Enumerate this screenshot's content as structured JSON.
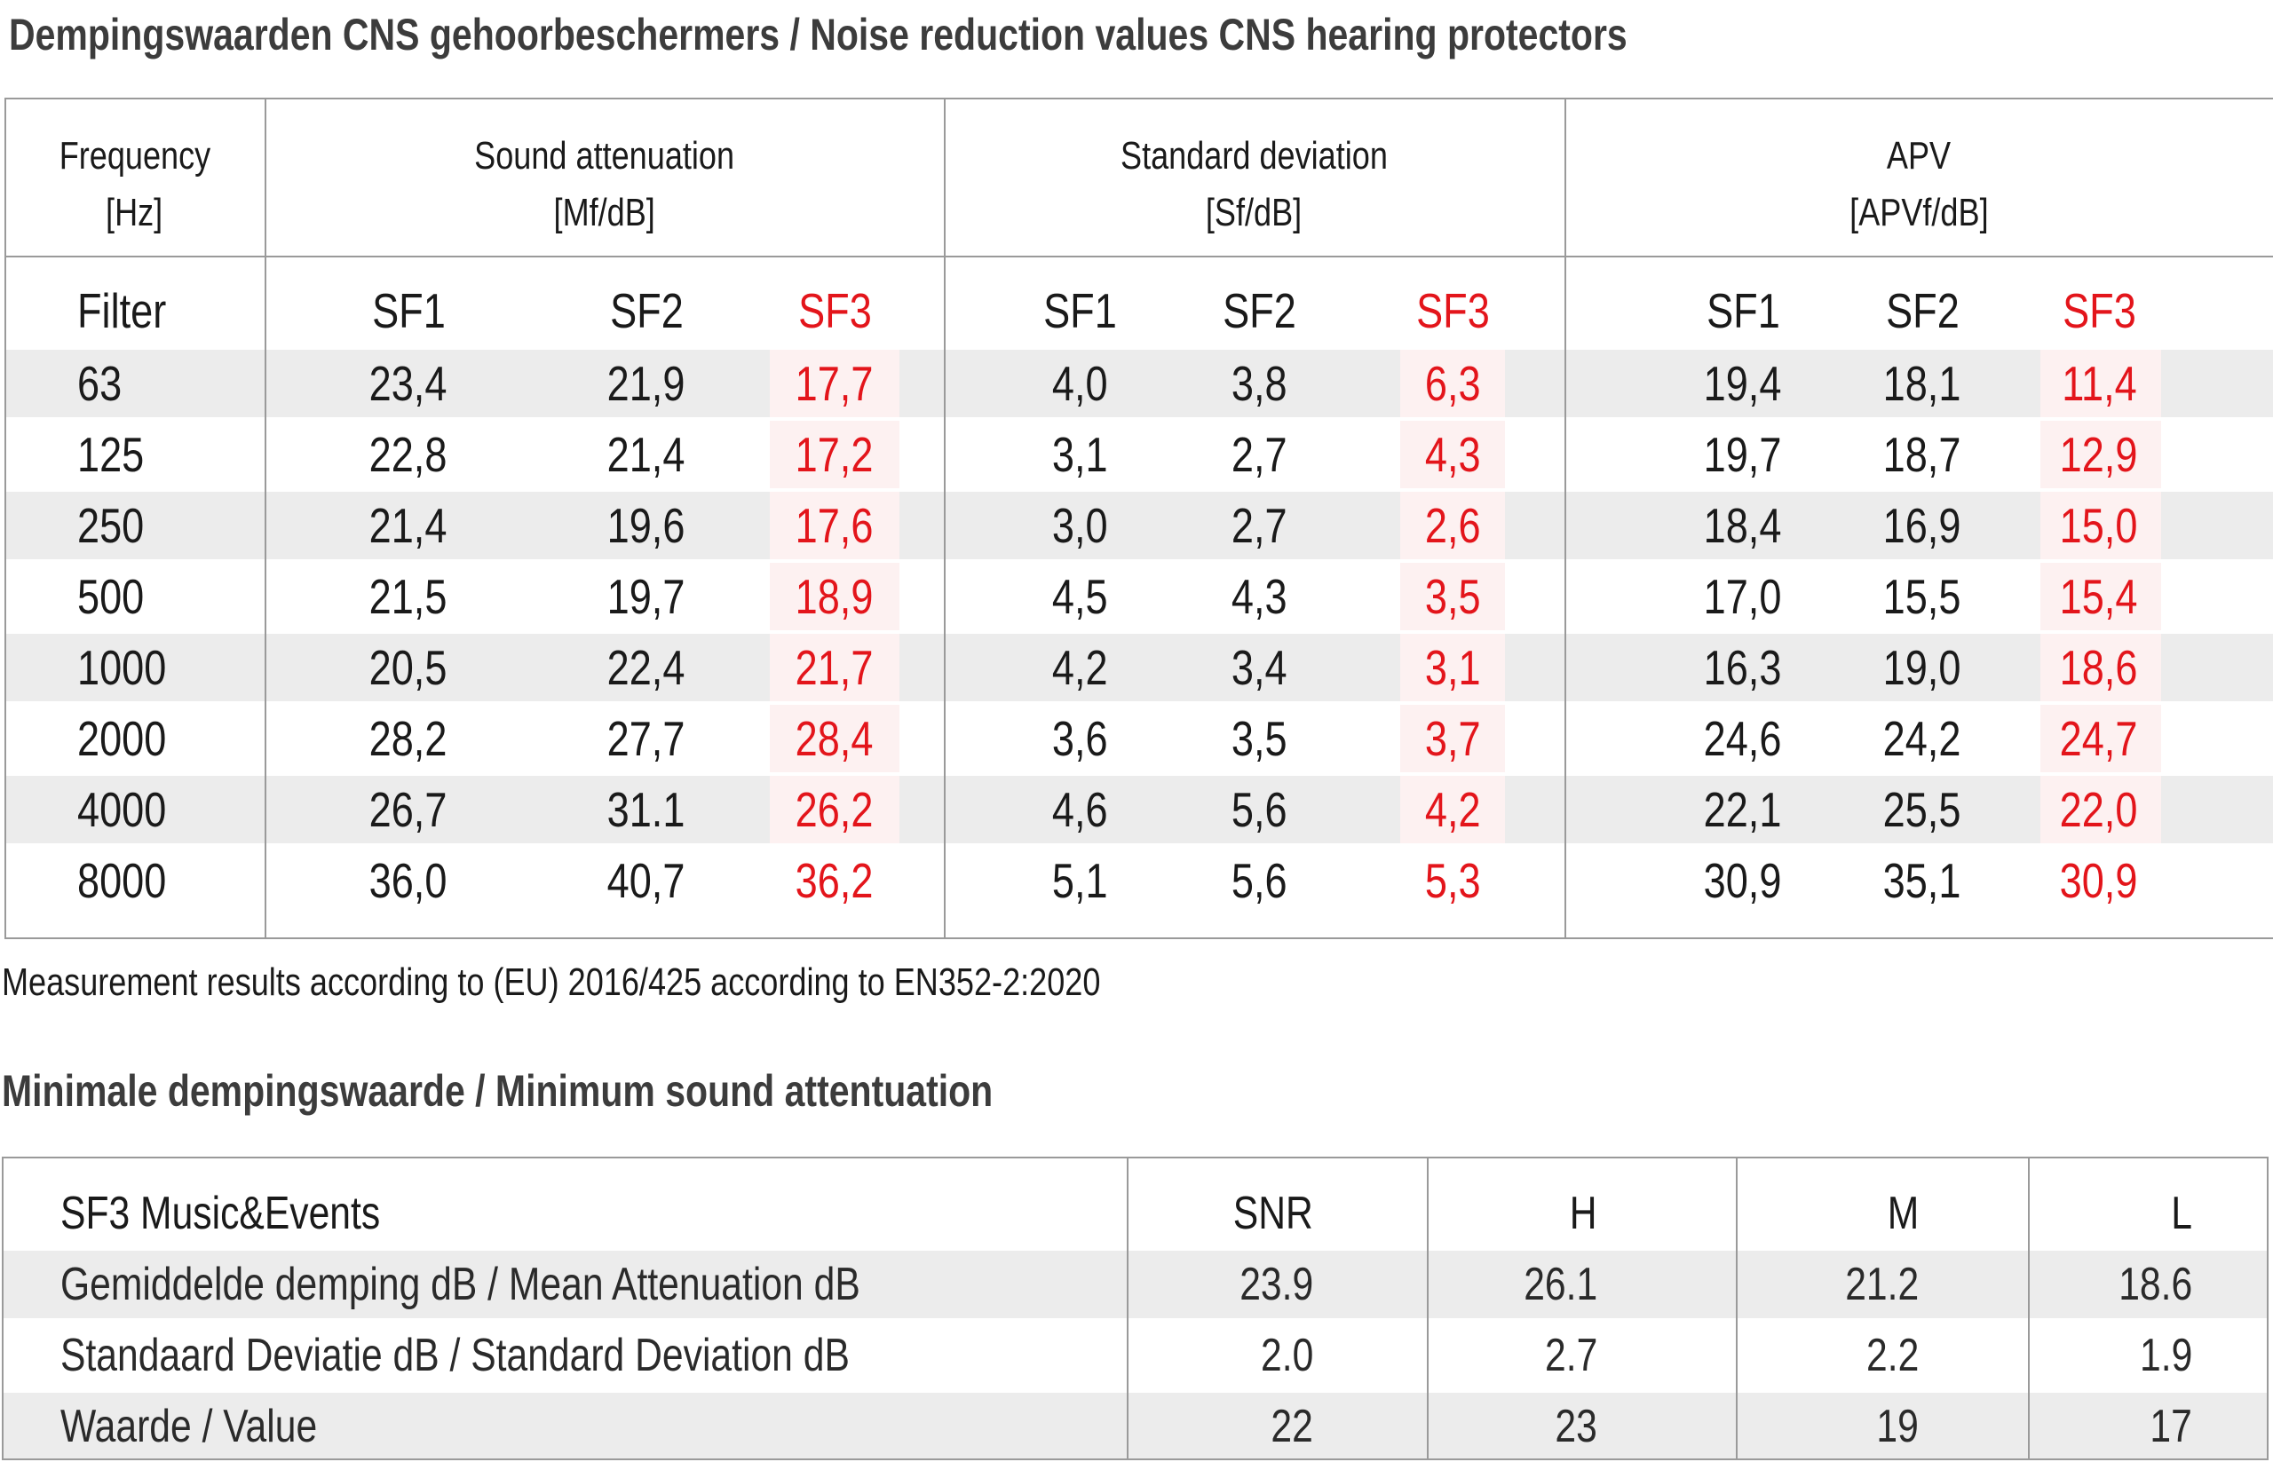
{
  "title_main": "Dempingswaarden CNS gehoorbeschermers /  Noise reduction values CNS hearing protectors",
  "table1": {
    "group_headers": [
      {
        "line1": "Frequency",
        "line2": "[Hz]"
      },
      {
        "line1": "Sound attenuation",
        "line2": "[Mf/dB]"
      },
      {
        "line1": "Standard deviation",
        "line2": "[Sf/dB]"
      },
      {
        "line1": "APV",
        "line2": "[APVf/dB]"
      }
    ],
    "sub_headers": [
      "Filter",
      "SF1",
      "SF2",
      "SF3",
      "SF1",
      "SF2",
      "SF3",
      "SF1",
      "SF2",
      "SF3"
    ],
    "rows": [
      [
        "63",
        "23,4",
        "21,9",
        "17,7",
        "4,0",
        "3,8",
        "6,3",
        "19,4",
        "18,1",
        "11,4"
      ],
      [
        "125",
        "22,8",
        "21,4",
        "17,2",
        "3,1",
        "2,7",
        "4,3",
        "19,7",
        "18,7",
        "12,9"
      ],
      [
        "250",
        "21,4",
        "19,6",
        "17,6",
        "3,0",
        "2,7",
        "2,6",
        "18,4",
        "16,9",
        "15,0"
      ],
      [
        "500",
        "21,5",
        "19,7",
        "18,9",
        "4,5",
        "4,3",
        "3,5",
        "17,0",
        "15,5",
        "15,4"
      ],
      [
        "1000",
        "20,5",
        "22,4",
        "21,7",
        "4,2",
        "3,4",
        "3,1",
        "16,3",
        "19,0",
        "18,6"
      ],
      [
        "2000",
        "28,2",
        "27,7",
        "28,4",
        "3,6",
        "3,5",
        "3,7",
        "24,6",
        "24,2",
        "24,7"
      ],
      [
        "4000",
        "26,7",
        "31.1",
        "26,2",
        "4,6",
        "5,6",
        "4,2",
        "22,1",
        "25,5",
        "22,0"
      ],
      [
        "8000",
        "36,0",
        "40,7",
        "36,2",
        "5,1",
        "5,6",
        "5,3",
        "30,9",
        "35,1",
        "30,9"
      ]
    ]
  },
  "note": "Measurement results according to (EU) 2016/425 according to EN352-2:2020",
  "title_min": "Minimale dempingswaarde / Minimum sound attentuation",
  "table2": {
    "headers": [
      "SF3 Music&Events",
      "SNR",
      "H",
      "M",
      "L"
    ],
    "rows": [
      {
        "label": "Gemiddelde demping dB / Mean Attenuation dB",
        "values": [
          "23.9",
          "26.1",
          "21.2",
          "18.6"
        ]
      },
      {
        "label": "Standaard Deviatie dB / Standard Deviation dB",
        "values": [
          "2.0",
          "2.7",
          "2.2",
          "1.9"
        ]
      },
      {
        "label": "Waarde / Value",
        "values": [
          "22",
          "23",
          "19",
          "17"
        ]
      }
    ]
  },
  "colors": {
    "accent_red": "#e3151b",
    "band_gray": "#ececec",
    "border": "#9a9a9a"
  }
}
